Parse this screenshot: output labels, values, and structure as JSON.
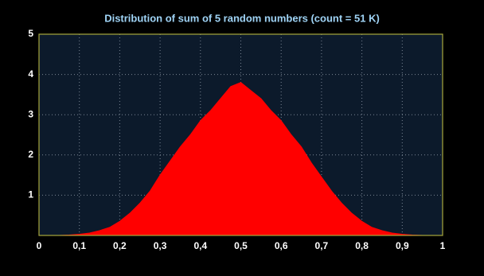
{
  "chart_data": {
    "type": "area",
    "title": "Distribution of sum of 5 random numbers (count = 51 K)",
    "x": [
      0,
      0.025,
      0.05,
      0.075,
      0.1,
      0.125,
      0.15,
      0.175,
      0.2,
      0.225,
      0.25,
      0.275,
      0.3,
      0.325,
      0.35,
      0.375,
      0.4,
      0.425,
      0.45,
      0.475,
      0.5,
      0.525,
      0.55,
      0.575,
      0.6,
      0.625,
      0.65,
      0.675,
      0.7,
      0.725,
      0.75,
      0.775,
      0.8,
      0.825,
      0.85,
      0.875,
      0.9,
      0.925,
      0.95,
      0.975,
      1
    ],
    "values": [
      0,
      0,
      0,
      0.01,
      0.03,
      0.06,
      0.12,
      0.2,
      0.35,
      0.55,
      0.8,
      1.1,
      1.5,
      1.85,
      2.2,
      2.5,
      2.85,
      3.1,
      3.4,
      3.7,
      3.8,
      3.6,
      3.4,
      3.1,
      2.85,
      2.5,
      2.2,
      1.8,
      1.45,
      1.1,
      0.8,
      0.55,
      0.35,
      0.2,
      0.12,
      0.06,
      0.03,
      0.01,
      0,
      0,
      0
    ],
    "color": "#ff0000",
    "xlim": [
      0,
      1
    ],
    "xticks": [
      0,
      {
        "value": 0.1,
        "label": "0,1"
      },
      {
        "value": 0.2,
        "label": "0,2"
      },
      {
        "value": 0.3,
        "label": "0,3"
      },
      {
        "value": 0.4,
        "label": "0,4"
      },
      {
        "value": 0.5,
        "label": "0,5"
      },
      {
        "value": 0.6,
        "label": "0,6"
      },
      {
        "value": 0.7,
        "label": "0,7"
      },
      {
        "value": 0.8,
        "label": "0,8"
      },
      {
        "value": 0.9,
        "label": "0,9"
      },
      1
    ],
    "ylim": [
      0,
      5
    ],
    "yticks": [
      1,
      2,
      3,
      4,
      5
    ],
    "grid": true
  }
}
